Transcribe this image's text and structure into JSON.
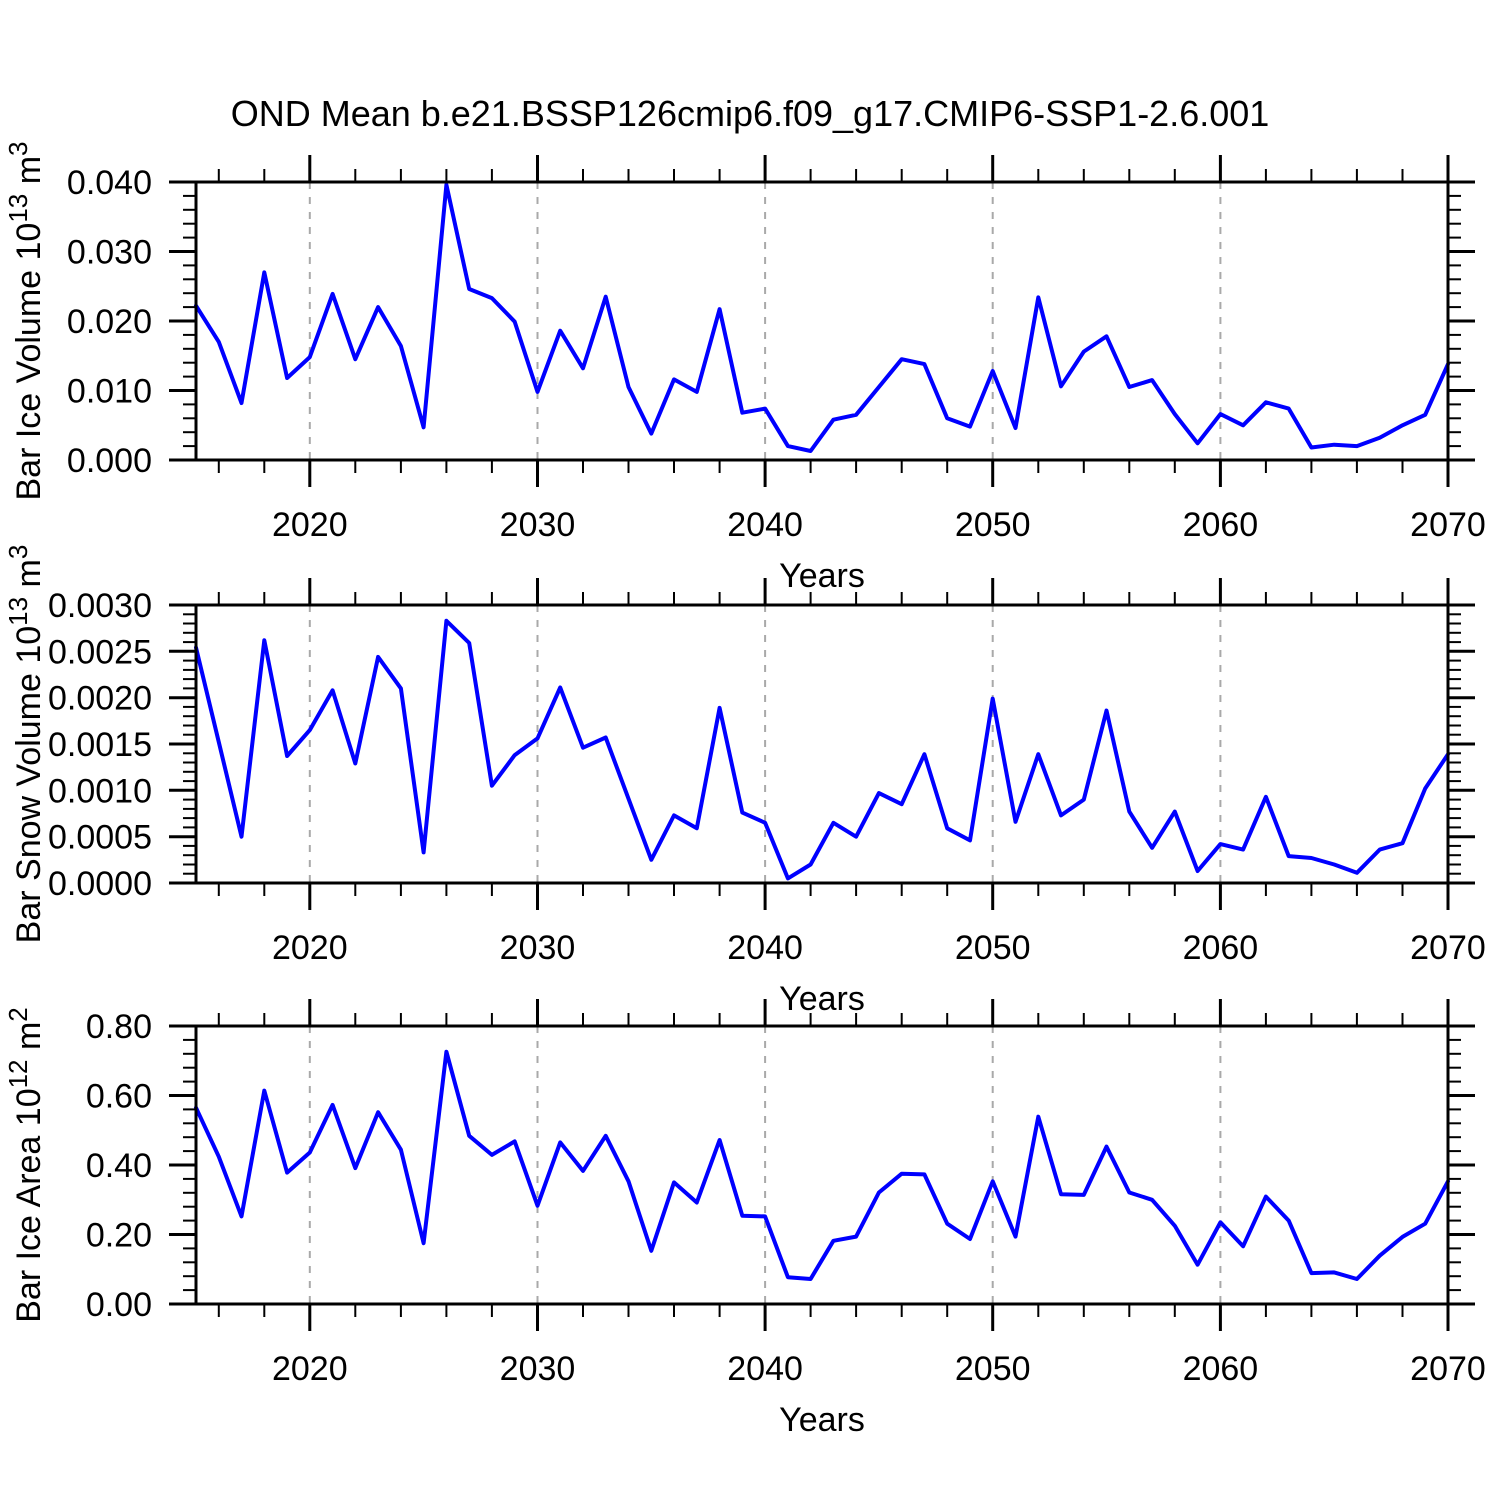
{
  "title": "OND Mean b.e21.BSSP126cmip6.f09_g17.CMIP6-SSP1-2.6.001",
  "xlabel": "Years",
  "colors": {
    "series": "#0000ff",
    "grid": "#a9a9a9",
    "axis": "#000000",
    "background": "#ffffff"
  },
  "x_axis": {
    "label": "Years",
    "start": 2015,
    "end": 2070,
    "step": 1,
    "major_ticks": [
      2020,
      2030,
      2040,
      2050,
      2060,
      2070
    ],
    "major_tick_labels": [
      "2020",
      "2030",
      "2040",
      "2050",
      "2060",
      "2070"
    ],
    "minor_step": 2,
    "gridlines": [
      2020,
      2030,
      2040,
      2050,
      2060
    ]
  },
  "chart_data": [
    {
      "type": "line",
      "name": "bar-ice-volume",
      "title": "",
      "xlabel": "Years",
      "ylabel": "Bar Ice Volume 10^13 m^3",
      "ylabel_parts": [
        {
          "t": "Bar Ice Volume 10",
          "sup": false
        },
        {
          "t": "13",
          "sup": true
        },
        {
          "t": " m",
          "sup": false
        },
        {
          "t": "3",
          "sup": true
        }
      ],
      "ylim": [
        0.0,
        0.04
      ],
      "yticks": [
        0.0,
        0.01,
        0.02,
        0.03,
        0.04
      ],
      "ytick_labels": [
        "0.000",
        "0.010",
        "0.020",
        "0.030",
        "0.040"
      ],
      "ymajor_step": 0.01,
      "yminor_step": 0.002,
      "x_years": {
        "start": 2015,
        "end": 2070,
        "step": 1
      },
      "values": [
        0.0222,
        0.017,
        0.0082,
        0.027,
        0.0118,
        0.0148,
        0.0239,
        0.0145,
        0.022,
        0.0164,
        0.0047,
        0.0396,
        0.0246,
        0.0233,
        0.0199,
        0.0098,
        0.0186,
        0.0132,
        0.0235,
        0.0105,
        0.0038,
        0.0116,
        0.0098,
        0.0217,
        0.0068,
        0.0074,
        0.002,
        0.0013,
        0.0058,
        0.0065,
        0.0105,
        0.0145,
        0.0138,
        0.006,
        0.0048,
        0.0128,
        0.0046,
        0.0234,
        0.0106,
        0.0156,
        0.0178,
        0.0105,
        0.0115,
        0.0066,
        0.0024,
        0.0066,
        0.005,
        0.0083,
        0.0074,
        0.0018,
        0.0022,
        0.002,
        0.0032,
        0.005,
        0.0065,
        0.0138
      ]
    },
    {
      "type": "line",
      "name": "bar-snow-volume",
      "title": "",
      "xlabel": "Years",
      "ylabel": "Bar Snow Volume 10^13 m^3",
      "ylabel_parts": [
        {
          "t": "Bar Snow Volume 10",
          "sup": false
        },
        {
          "t": "13",
          "sup": true
        },
        {
          "t": " m",
          "sup": false
        },
        {
          "t": "3",
          "sup": true
        }
      ],
      "ylim": [
        0.0,
        0.003
      ],
      "yticks": [
        0.0,
        0.0005,
        0.001,
        0.0015,
        0.002,
        0.0025,
        0.003
      ],
      "ytick_labels": [
        "0.0000",
        "0.0005",
        "0.0010",
        "0.0015",
        "0.0020",
        "0.0025",
        "0.0030"
      ],
      "ymajor_step": 0.0005,
      "yminor_step": 0.0001,
      "x_years": {
        "start": 2015,
        "end": 2070,
        "step": 1
      },
      "values": [
        0.00254,
        0.00152,
        0.0005,
        0.00262,
        0.00137,
        0.00165,
        0.00208,
        0.00129,
        0.00244,
        0.0021,
        0.00033,
        0.00283,
        0.00259,
        0.00105,
        0.00138,
        0.00156,
        0.00211,
        0.00146,
        0.00157,
        0.00091,
        0.00025,
        0.00073,
        0.00059,
        0.00189,
        0.00076,
        0.00065,
        5e-05,
        0.0002,
        0.00065,
        0.0005,
        0.00097,
        0.00085,
        0.00139,
        0.00059,
        0.00046,
        0.00199,
        0.00066,
        0.00139,
        0.00073,
        0.0009,
        0.00186,
        0.00077,
        0.00038,
        0.00077,
        0.00013,
        0.00042,
        0.00036,
        0.00093,
        0.00029,
        0.00027,
        0.0002,
        0.00011,
        0.00036,
        0.00043,
        0.00102,
        0.00139
      ]
    },
    {
      "type": "line",
      "name": "bar-ice-area",
      "title": "",
      "xlabel": "Years",
      "ylabel": "Bar Ice Area 10^12 m^2",
      "ylabel_parts": [
        {
          "t": "Bar Ice Area 10",
          "sup": false
        },
        {
          "t": "12",
          "sup": true
        },
        {
          "t": " m",
          "sup": false
        },
        {
          "t": "2",
          "sup": true
        }
      ],
      "ylim": [
        0.0,
        0.8
      ],
      "yticks": [
        0.0,
        0.2,
        0.4,
        0.6,
        0.8
      ],
      "ytick_labels": [
        "0.00",
        "0.20",
        "0.40",
        "0.60",
        "0.80"
      ],
      "ymajor_step": 0.2,
      "yminor_step": 0.04,
      "x_years": {
        "start": 2015,
        "end": 2070,
        "step": 1
      },
      "values": [
        0.565,
        0.424,
        0.252,
        0.614,
        0.378,
        0.436,
        0.573,
        0.391,
        0.552,
        0.444,
        0.175,
        0.726,
        0.484,
        0.429,
        0.468,
        0.283,
        0.465,
        0.383,
        0.484,
        0.353,
        0.153,
        0.35,
        0.292,
        0.472,
        0.254,
        0.252,
        0.077,
        0.072,
        0.182,
        0.194,
        0.321,
        0.375,
        0.373,
        0.231,
        0.187,
        0.353,
        0.194,
        0.539,
        0.316,
        0.314,
        0.453,
        0.321,
        0.3,
        0.225,
        0.113,
        0.235,
        0.166,
        0.309,
        0.24,
        0.089,
        0.091,
        0.072,
        0.139,
        0.193,
        0.231,
        0.353
      ]
    }
  ]
}
